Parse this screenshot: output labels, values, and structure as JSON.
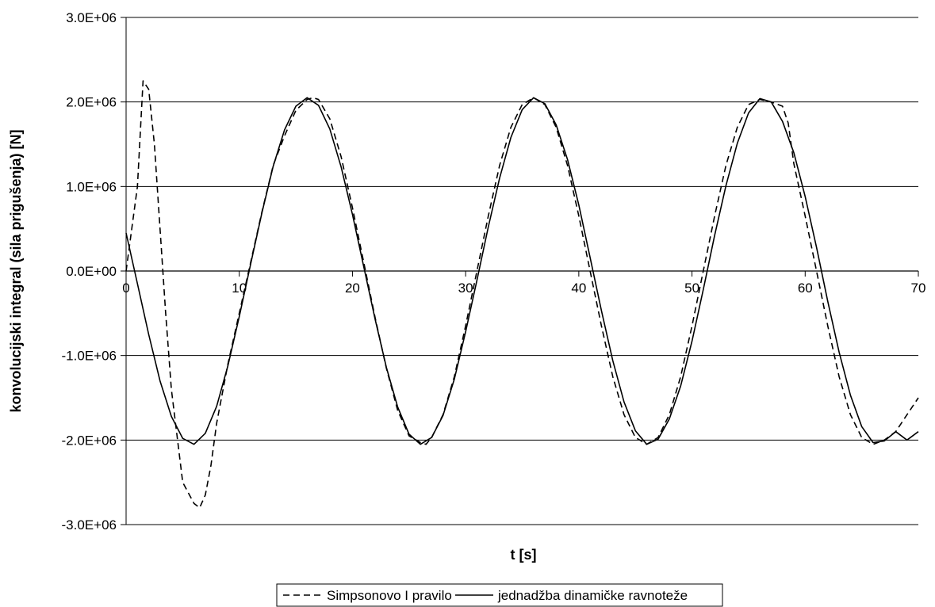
{
  "chart_data": {
    "type": "line",
    "title": "",
    "xlabel": "t [s]",
    "ylabel": "konvolucijski integral (sila prigušenja) [N]",
    "xlim": [
      0,
      70
    ],
    "ylim": [
      -3000000,
      3000000
    ],
    "x_ticks": [
      0,
      10,
      20,
      30,
      40,
      50,
      60,
      70
    ],
    "x_tick_labels": [
      "0",
      "10",
      "20",
      "30",
      "40",
      "50",
      "60",
      "70"
    ],
    "y_ticks": [
      3000000,
      2000000,
      1000000,
      0,
      -1000000,
      -2000000,
      -3000000
    ],
    "y_tick_labels": [
      "3.0E+06",
      "2.0E+06",
      "1.0E+06",
      "0.0E+00",
      "-1.0E+06",
      "-2.0E+06",
      "-3.0E+06"
    ],
    "grid": "horizontal",
    "legend_position": "bottom",
    "series": [
      {
        "name": "Simpsonovo I pravilo",
        "style": "dashed",
        "color": "#000000",
        "x": [
          0,
          1,
          1.5,
          2,
          2.5,
          3,
          3.5,
          4,
          5,
          6,
          6.5,
          7,
          7.5,
          8,
          9,
          10,
          11,
          12,
          13,
          14,
          15,
          16,
          16.5,
          17,
          18,
          19,
          20,
          21,
          22,
          23,
          24,
          25,
          26,
          26.5,
          27,
          28,
          29,
          30,
          31,
          32,
          33,
          34,
          35,
          36,
          37,
          38,
          39,
          40,
          41,
          42,
          43,
          44,
          45,
          46,
          47,
          48,
          49,
          50,
          51,
          52,
          53,
          54,
          55,
          56,
          57,
          58,
          58.5,
          59,
          60,
          61,
          62,
          63,
          64,
          65,
          66,
          67,
          68,
          69,
          70
        ],
        "y": [
          0,
          1000000,
          2250000,
          2150000,
          1500000,
          500000,
          -500000,
          -1400000,
          -2500000,
          -2750000,
          -2800000,
          -2650000,
          -2300000,
          -1800000,
          -1100000,
          -500000,
          100000,
          700000,
          1250000,
          1600000,
          1900000,
          2030000,
          2050000,
          2030000,
          1800000,
          1350000,
          750000,
          100000,
          -550000,
          -1150000,
          -1650000,
          -1950000,
          -2030000,
          -2050000,
          -1970000,
          -1700000,
          -1250000,
          -650000,
          0,
          650000,
          1250000,
          1700000,
          1970000,
          2050000,
          1970000,
          1700000,
          1250000,
          650000,
          0,
          -650000,
          -1250000,
          -1700000,
          -1970000,
          -2050000,
          -1970000,
          -1700000,
          -1250000,
          -650000,
          0,
          650000,
          1250000,
          1700000,
          1970000,
          2030000,
          2000000,
          1950000,
          1750000,
          1270000,
          650000,
          0,
          -650000,
          -1250000,
          -1700000,
          -1970000,
          -2050000,
          -2000000,
          -1900000,
          -1700000,
          -1500000
        ]
      },
      {
        "name": "jednadžba dinamičke ravnoteže",
        "style": "solid",
        "color": "#000000",
        "x": [
          0,
          1,
          2,
          3,
          4,
          5,
          6,
          7,
          8,
          9,
          10,
          11,
          12,
          13,
          14,
          15,
          16,
          17,
          18,
          19,
          20,
          21,
          22,
          23,
          24,
          25,
          26,
          27,
          28,
          29,
          30,
          31,
          32,
          33,
          34,
          35,
          36,
          37,
          38,
          39,
          40,
          41,
          42,
          43,
          44,
          45,
          46,
          47,
          48,
          49,
          50,
          51,
          52,
          53,
          54,
          55,
          56,
          57,
          58,
          59,
          60,
          61,
          62,
          63,
          64,
          65,
          66,
          67,
          68,
          69,
          70
        ],
        "y": [
          450000,
          -150000,
          -750000,
          -1300000,
          -1720000,
          -1980000,
          -2050000,
          -1920000,
          -1600000,
          -1120000,
          -540000,
          80000,
          690000,
          1240000,
          1670000,
          1950000,
          2050000,
          1960000,
          1680000,
          1230000,
          670000,
          50000,
          -570000,
          -1140000,
          -1610000,
          -1930000,
          -2050000,
          -1970000,
          -1710000,
          -1280000,
          -720000,
          -110000,
          520000,
          1100000,
          1580000,
          1910000,
          2050000,
          1980000,
          1730000,
          1320000,
          780000,
          160000,
          -470000,
          -1060000,
          -1550000,
          -1890000,
          -2050000,
          -1990000,
          -1750000,
          -1360000,
          -830000,
          -220000,
          420000,
          1010000,
          1510000,
          1870000,
          2040000,
          2000000,
          1770000,
          1400000,
          880000,
          280000,
          -360000,
          -960000,
          -1470000,
          -1840000,
          -2030000,
          -2010000,
          -1900000,
          -2000000,
          -1900000
        ]
      }
    ]
  }
}
